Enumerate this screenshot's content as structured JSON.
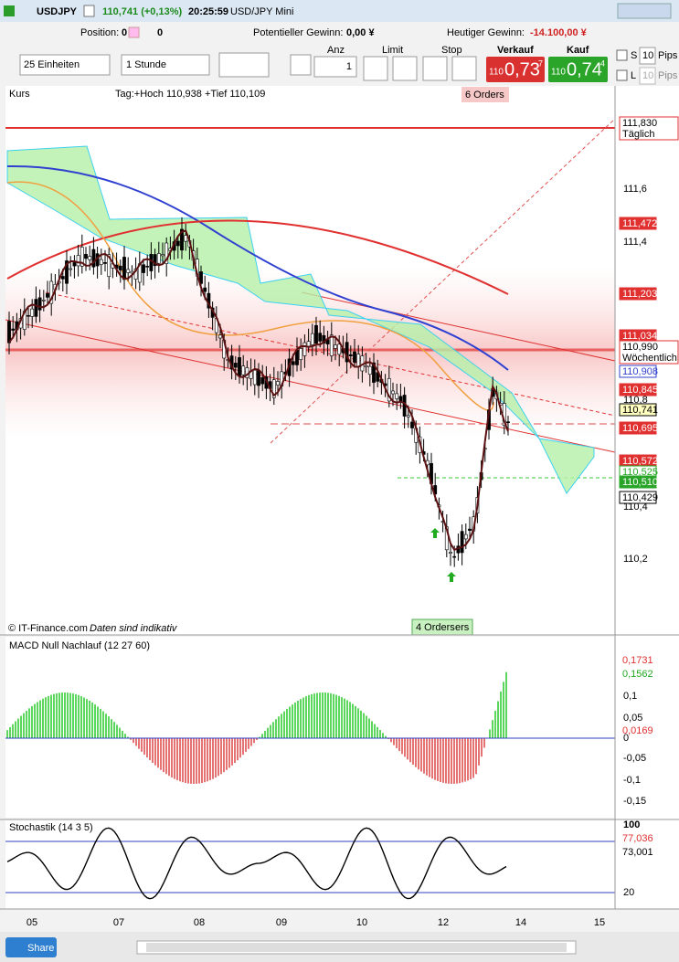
{
  "title_bar": {
    "symbol": "USDJPY",
    "price": "110,741 (+0,13%)",
    "time": "20:25:59",
    "name": "USD/JPY Mini"
  },
  "position_bar": {
    "position_label": "Position:",
    "position_value": "0",
    "position_value_2": "0",
    "potential_label": "Potentieller Gewinn:",
    "potential_value": "0,00 ¥",
    "today_label": "Heutiger Gewinn:",
    "today_value": "-14.100,00 ¥"
  },
  "order_bar": {
    "units": "25 Einheiten",
    "interval": "1 Stunde",
    "anz_label": "Anz",
    "anz_value": "1",
    "limit": "Limit",
    "stop": "Stop",
    "sell_label": "Verkauf",
    "sell_big": "110",
    "sell_price": "0,73",
    "sell_sup": "7",
    "buy_label": "Kauf",
    "buy_big": "110",
    "buy_price": "0,74",
    "buy_sup": "4",
    "s": "S",
    "pips_s": "10",
    "pips_label_s": "Pips",
    "l": "L",
    "pips_l": "10",
    "pips_label_l": "Pips"
  },
  "price_panel": {
    "label": "Kurs",
    "info": "Tag:+Hoch 110,938 +Tief 110,109",
    "orders_top": "6 Orders",
    "orders_bottom": "4 Orders",
    "orders_bottom_suffix": "ers",
    "copyright": "© IT-Finance.com",
    "note": "Daten sind indikativ",
    "axis": [
      "111,6",
      "111,4",
      "110,8",
      "110,4",
      "110,2"
    ],
    "tags": [
      {
        "text": "111,830",
        "sub": "Täglich"
      },
      {
        "text": "111,472"
      },
      {
        "text": "111,203"
      },
      {
        "text": "111,034"
      },
      {
        "text": "110,990",
        "sub": "Wöchentlich"
      },
      {
        "text": "110,908"
      },
      {
        "text": "110,845"
      },
      {
        "text": "110,741"
      },
      {
        "text": "110,695"
      },
      {
        "text": "110,572"
      },
      {
        "text": "110,525"
      },
      {
        "text": "110,510"
      },
      {
        "text": "110,429"
      }
    ]
  },
  "macd": {
    "label": "MACD Null Nachlauf (12 27 60)",
    "axis": [
      "0,1",
      "0,05",
      "0",
      "-0,05",
      "-0,1",
      "-0,15"
    ],
    "tags": [
      "0,1731",
      "0,1562",
      "0,0169"
    ]
  },
  "stoch": {
    "label": "Stochastik (14 3 5)",
    "axis": [
      "100",
      "20"
    ],
    "tags": [
      "77,036",
      "73,001"
    ]
  },
  "x_axis": [
    "05",
    "07",
    "08",
    "09",
    "10",
    "12",
    "14",
    "15"
  ],
  "share": "Share"
}
